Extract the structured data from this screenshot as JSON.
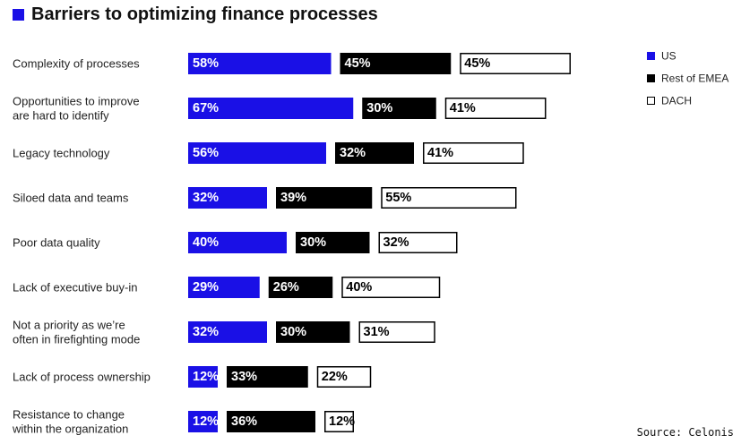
{
  "chart_data": {
    "type": "bar",
    "orientation": "horizontal",
    "layout": "grouped-side-by-side",
    "title": "Barriers to optimizing finance processes",
    "categories": [
      [
        "Complexity of processes"
      ],
      [
        "Opportunities to improve",
        "are hard to identify"
      ],
      [
        "Legacy technology"
      ],
      [
        "Siloed data and teams"
      ],
      [
        "Poor data quality"
      ],
      [
        "Lack of executive buy-in"
      ],
      [
        "Not a priority as we’re",
        "often in firefighting mode"
      ],
      [
        "Lack of process ownership"
      ],
      [
        "Resistance to change",
        "within the organization"
      ]
    ],
    "series": [
      {
        "name": "US",
        "color": "#1a10e6",
        "text_color": "#ffffff",
        "values": [
          58,
          67,
          56,
          32,
          40,
          29,
          32,
          12,
          12
        ]
      },
      {
        "name": "Rest of EMEA",
        "color": "#000000",
        "text_color": "#ffffff",
        "values": [
          45,
          30,
          32,
          39,
          30,
          26,
          30,
          33,
          36
        ]
      },
      {
        "name": "DACH",
        "color": "#ffffff",
        "border": "#000000",
        "text_color": "#000000",
        "values": [
          45,
          41,
          41,
          55,
          32,
          40,
          31,
          22,
          12
        ]
      }
    ],
    "value_suffix": "%",
    "legend_position": "top-right",
    "source": "Source: Celonis",
    "grid": false
  }
}
